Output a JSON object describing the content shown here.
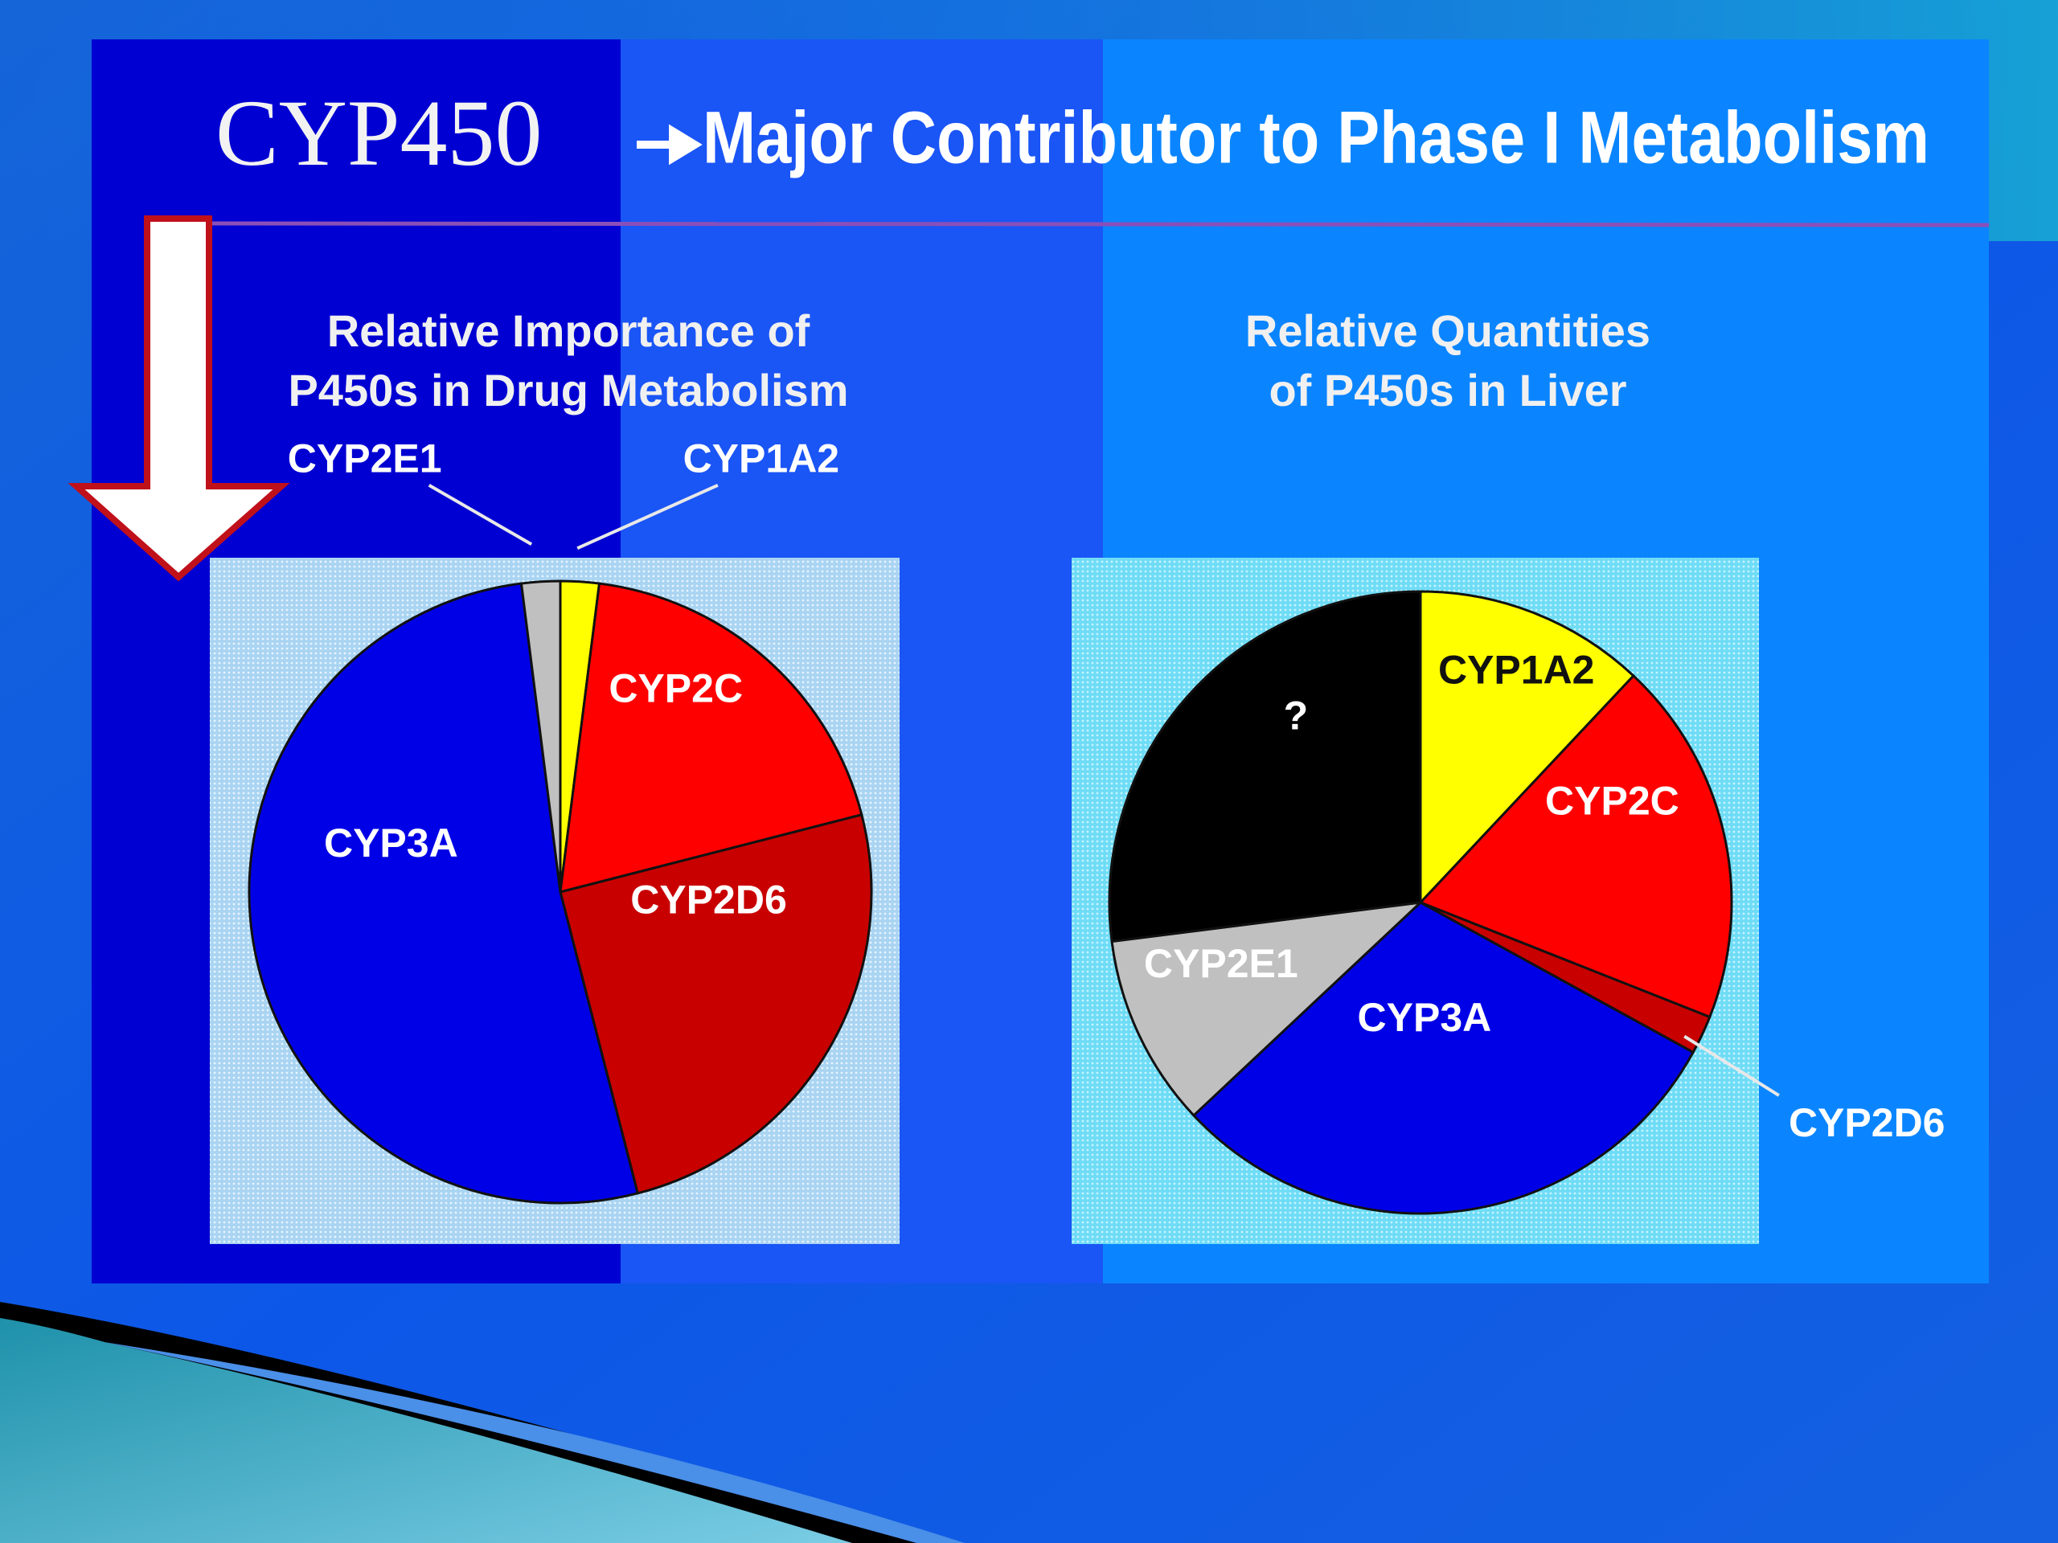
{
  "slide": {
    "title": "CYP450",
    "subtitle": "Major Contributor to Phase I Metabolism"
  },
  "chart_data": [
    {
      "type": "pie",
      "title": [
        "Relative Importance of",
        "P450s in Drug Metabolism"
      ],
      "categories": [
        "CYP1A2",
        "CYP2C",
        "CYP2D6",
        "CYP3A",
        "CYP2E1"
      ],
      "values": [
        2,
        19,
        25,
        52,
        2
      ],
      "colors": [
        "#ffff00",
        "#ff0000",
        "#c80000",
        "#0000e6",
        "#c0c0c0"
      ]
    },
    {
      "type": "pie",
      "title": [
        "Relative Quantities",
        "of P450s in Liver"
      ],
      "categories": [
        "CYP1A2",
        "CYP2C",
        "CYP2D6",
        "CYP3A",
        "CYP2E1",
        "?"
      ],
      "values": [
        12,
        19,
        2,
        30,
        10,
        27
      ],
      "colors": [
        "#ffff00",
        "#ff0000",
        "#c80000",
        "#0000e6",
        "#c0c0c0",
        "#000000"
      ]
    }
  ]
}
